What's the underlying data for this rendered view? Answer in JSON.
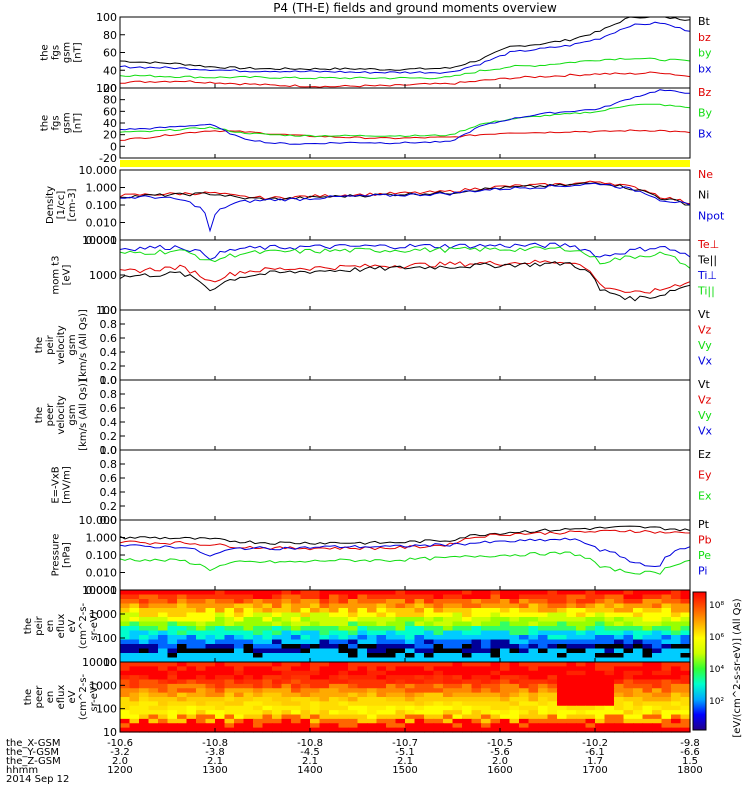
{
  "title": "P4 (TH-E) fields and ground moments overview",
  "colors": {
    "black": "#000000",
    "red": "#e00000",
    "green": "#11dd11",
    "blue": "#0000dd",
    "yellow": "#ffff00"
  },
  "chart_data": [
    {
      "type": "line",
      "ylabel": [
        "the",
        "fgs",
        "gsm",
        "[nT]"
      ],
      "yticks": [
        "100",
        "80",
        "60",
        "40",
        "20"
      ],
      "ylim": [
        0,
        100
      ],
      "series": [
        {
          "name": "Bt",
          "color": "black",
          "values": [
            38,
            36,
            34,
            30,
            28,
            27,
            27,
            27,
            27,
            26,
            27,
            28,
            40,
            58,
            62,
            68,
            80,
            100,
            100,
            96
          ]
        },
        {
          "name": "bz",
          "color": "red",
          "values": [
            8,
            9,
            10,
            8,
            6,
            4,
            3,
            2,
            3,
            3,
            5,
            6,
            10,
            14,
            16,
            18,
            20,
            20,
            22,
            16
          ]
        },
        {
          "name": "by",
          "color": "green",
          "values": [
            18,
            17,
            16,
            15,
            15,
            15,
            14,
            14,
            14,
            14,
            14,
            15,
            24,
            30,
            32,
            36,
            40,
            42,
            40,
            38
          ]
        },
        {
          "name": "bx",
          "color": "blue",
          "values": [
            30,
            29,
            28,
            26,
            24,
            24,
            23,
            23,
            22,
            22,
            22,
            22,
            34,
            50,
            55,
            60,
            70,
            88,
            92,
            80
          ]
        }
      ]
    },
    {
      "type": "line",
      "ylabel": [
        "the",
        "fgs",
        "gsm",
        "[nT]"
      ],
      "yticks": [
        "100",
        "80",
        "60",
        "40",
        "20",
        "0",
        "-20"
      ],
      "ylim": [
        -35,
        100
      ],
      "series": [
        {
          "name": "Bz",
          "color": "red",
          "values": [
            0,
            5,
            12,
            18,
            16,
            12,
            8,
            6,
            4,
            3,
            4,
            5,
            10,
            14,
            14,
            16,
            16,
            18,
            18,
            14
          ]
        },
        {
          "name": "By",
          "color": "green",
          "values": [
            15,
            16,
            20,
            24,
            14,
            10,
            8,
            8,
            8,
            8,
            8,
            9,
            30,
            40,
            46,
            50,
            55,
            68,
            68,
            62
          ]
        },
        {
          "name": "Bx",
          "color": "blue",
          "values": [
            20,
            22,
            26,
            30,
            4,
            -6,
            -8,
            -6,
            -5,
            -6,
            -5,
            -4,
            26,
            40,
            50,
            55,
            60,
            80,
            96,
            90
          ]
        }
      ]
    },
    {
      "type": "line",
      "ylabel": [
        "Density",
        "[1/cc]",
        "[cm-3]"
      ],
      "yticks": [
        "10.000",
        "1.000",
        "0.100",
        "0.010",
        "0.001"
      ],
      "ylim": [
        0.001,
        10
      ],
      "log": true,
      "series": [
        {
          "name": "Ne",
          "color": "red",
          "values": [
            0.35,
            0.4,
            0.45,
            0.5,
            0.3,
            0.25,
            0.3,
            0.35,
            0.4,
            0.45,
            0.5,
            0.6,
            0.9,
            1.2,
            1.4,
            1.6,
            2.2,
            1.1,
            0.3,
            0.12
          ]
        },
        {
          "name": "Ni",
          "color": "black",
          "values": [
            0.3,
            0.35,
            0.4,
            0.45,
            0.25,
            0.22,
            0.25,
            0.3,
            0.35,
            0.4,
            0.45,
            0.5,
            0.8,
            1.0,
            1.2,
            1.4,
            1.9,
            0.9,
            0.25,
            0.1
          ]
        },
        {
          "name": "Npot",
          "color": "blue",
          "values": [
            0.25,
            0.3,
            0.2,
            0.003,
            0.15,
            0.2,
            0.22,
            0.28,
            0.32,
            0.36,
            0.4,
            0.45,
            0.7,
            0.9,
            1.1,
            1.3,
            1.7,
            0.8,
            0.2,
            0.1
          ]
        }
      ]
    },
    {
      "type": "line",
      "ylabel": [
        "mom t3",
        "[eV]"
      ],
      "yticks": [
        "10000",
        "1000",
        "100"
      ],
      "ylim": [
        40,
        12000
      ],
      "log": true,
      "series": [
        {
          "name": "Te⊥",
          "color": "red",
          "values": [
            900,
            1100,
            1300,
            400,
            900,
            1100,
            1200,
            1300,
            1400,
            1500,
            1600,
            1700,
            1800,
            1900,
            2000,
            2100,
            300,
            150,
            200,
            400
          ]
        },
        {
          "name": "Te||",
          "color": "black",
          "values": [
            600,
            700,
            800,
            200,
            600,
            800,
            900,
            1000,
            1100,
            1200,
            1300,
            1400,
            1500,
            1600,
            1700,
            1800,
            200,
            100,
            130,
            300
          ]
        },
        {
          "name": "Ti⊥",
          "color": "blue",
          "values": [
            6000,
            6500,
            7000,
            3000,
            6000,
            6500,
            6800,
            7000,
            7200,
            7300,
            7400,
            7500,
            7600,
            7700,
            7800,
            8000,
            3000,
            5000,
            7000,
            3000
          ]
        },
        {
          "name": "Ti||",
          "color": "green",
          "values": [
            4000,
            4500,
            5000,
            2000,
            4000,
            4500,
            4800,
            5000,
            5200,
            5300,
            5400,
            5500,
            5600,
            5700,
            5800,
            6000,
            2000,
            3000,
            4000,
            1200
          ]
        }
      ]
    },
    {
      "type": "line",
      "ylabel": [
        "the",
        "peir",
        "velocity",
        "gsm",
        "[km/s (All Qs)]"
      ],
      "yticks": [
        "1.0",
        "0.8",
        "0.6",
        "0.4",
        "0.2",
        "0.0"
      ],
      "ylim": [
        0,
        1
      ],
      "legend": [
        "Vt",
        "Vz",
        "Vy",
        "Vx"
      ],
      "series": []
    },
    {
      "type": "line",
      "ylabel": [
        "the",
        "peer",
        "velocity",
        "gsm",
        "[km/s (All Qs)]"
      ],
      "yticks": [
        "1.0",
        "0.8",
        "0.6",
        "0.4",
        "0.2",
        "0.0"
      ],
      "ylim": [
        0,
        1
      ],
      "legend": [
        "Vt",
        "Vz",
        "Vy",
        "Vx"
      ],
      "series": []
    },
    {
      "type": "line",
      "ylabel": [
        "E=-VxB",
        "[mV/m]"
      ],
      "yticks": [
        "1.0",
        "0.8",
        "0.6",
        "0.4",
        "0.2",
        "0.0"
      ],
      "ylim": [
        0,
        1
      ],
      "legend": [
        "Ez",
        "Ey",
        "Ex"
      ],
      "series": []
    },
    {
      "type": "line",
      "ylabel": [
        "Pressure",
        "[nPa]"
      ],
      "yticks": [
        "10.000",
        "1.000",
        "0.100",
        "0.010",
        "0.001"
      ],
      "ylim": [
        0.001,
        10
      ],
      "log": true,
      "series": [
        {
          "name": "Pt",
          "color": "black",
          "values": [
            1.0,
            1.0,
            0.9,
            0.8,
            0.6,
            0.5,
            0.5,
            0.5,
            0.5,
            0.5,
            0.6,
            0.7,
            1.5,
            2.0,
            2.5,
            3.0,
            3.5,
            4.0,
            3.5,
            2.5
          ]
        },
        {
          "name": "Pb",
          "color": "red",
          "values": [
            0.6,
            0.5,
            0.5,
            0.4,
            0.3,
            0.25,
            0.25,
            0.25,
            0.25,
            0.25,
            0.3,
            0.4,
            1.2,
            1.6,
            1.8,
            2.0,
            2.2,
            2.5,
            2.0,
            1.8
          ]
        },
        {
          "name": "Pe",
          "color": "green",
          "values": [
            0.06,
            0.05,
            0.05,
            0.015,
            0.04,
            0.04,
            0.04,
            0.05,
            0.05,
            0.05,
            0.06,
            0.07,
            0.09,
            0.1,
            0.12,
            0.13,
            0.02,
            0.01,
            0.01,
            0.05
          ]
        },
        {
          "name": "Pi",
          "color": "blue",
          "values": [
            0.35,
            0.3,
            0.3,
            0.08,
            0.25,
            0.25,
            0.25,
            0.3,
            0.3,
            0.3,
            0.35,
            0.4,
            0.5,
            0.6,
            0.7,
            0.8,
            0.2,
            0.04,
            0.02,
            0.3
          ]
        }
      ]
    },
    {
      "type": "heatmap",
      "ylabel": [
        "the",
        "peir",
        "en",
        "eflux",
        "eV",
        "(cm^2-s-",
        "sr-eV)"
      ],
      "yticks": [
        "10000",
        "1000",
        "100",
        "10"
      ],
      "ylim": [
        5,
        30000
      ]
    },
    {
      "type": "heatmap",
      "ylabel": [
        "the",
        "peer",
        "en",
        "eflux",
        "eV",
        "(cm^2-s-",
        "sr-eV)"
      ],
      "yticks": [
        "10000",
        "1000",
        "100",
        "10"
      ],
      "ylim": [
        5,
        30000
      ]
    }
  ],
  "flag_bar": {
    "color": "yellow"
  },
  "colorbar": {
    "label": "[eV/(cm^2-s-sr-eV)] (All Qs)",
    "ticks": [
      "10⁸",
      "10⁶",
      "10⁴",
      "10²"
    ]
  },
  "xaxis": {
    "rows": [
      {
        "label": "the_X-GSM",
        "values": [
          "-10.6",
          "-10.8",
          "-10.8",
          "-10.7",
          "-10.5",
          "-10.2",
          "-9.8"
        ]
      },
      {
        "label": "the_Y-GSM",
        "values": [
          "-3.2",
          "-3.8",
          "-4.5",
          "-5.1",
          "-5.6",
          "-6.1",
          "-6.6"
        ]
      },
      {
        "label": "the_Z-GSM",
        "values": [
          "2.0",
          "2.1",
          "2.1",
          "2.1",
          "2.0",
          "1.7",
          "1.5"
        ]
      },
      {
        "label": "hhmm",
        "values": [
          "1200",
          "1300",
          "1400",
          "1500",
          "1600",
          "1700",
          "1800"
        ]
      }
    ],
    "date": "2014 Sep 12"
  }
}
